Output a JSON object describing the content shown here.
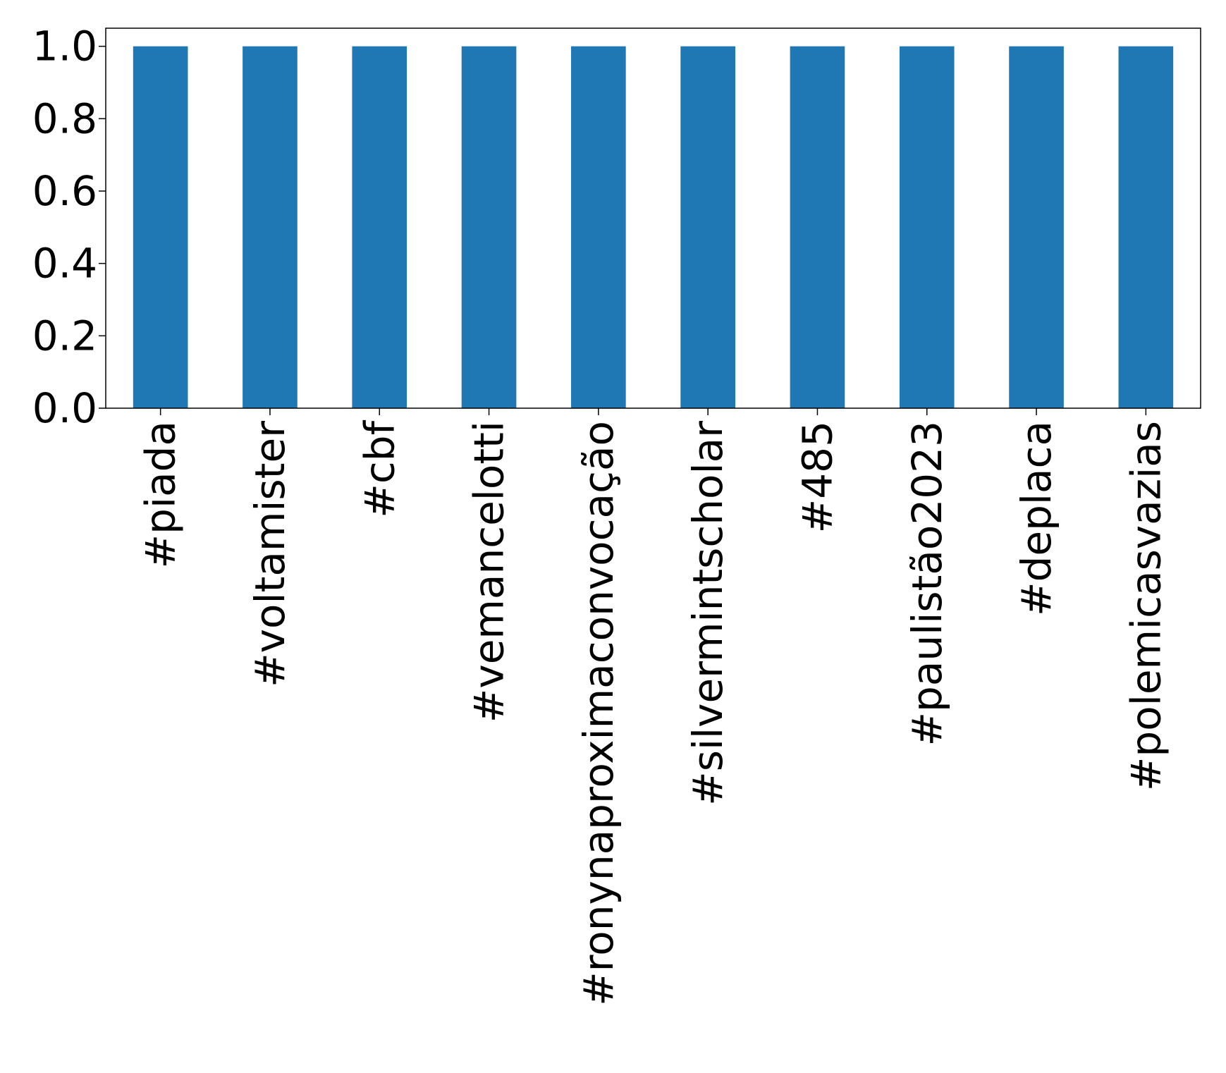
{
  "chart_data": {
    "type": "bar",
    "categories": [
      "#piada",
      "#voltamister",
      "#cbf",
      "#vemancelotti",
      "#ronynaproximaconvocação",
      "#silvermintscholar",
      "#485",
      "#paulistão2023",
      "#deplaca",
      "#polemicasvazias"
    ],
    "values": [
      1.0,
      1.0,
      1.0,
      1.0,
      1.0,
      1.0,
      1.0,
      1.0,
      1.0,
      1.0
    ],
    "ylim": [
      0,
      1.05
    ],
    "yticks": [
      "0.0",
      "0.2",
      "0.4",
      "0.6",
      "0.8",
      "1.0"
    ],
    "grid": false,
    "bar_color": "#1f77b4"
  }
}
